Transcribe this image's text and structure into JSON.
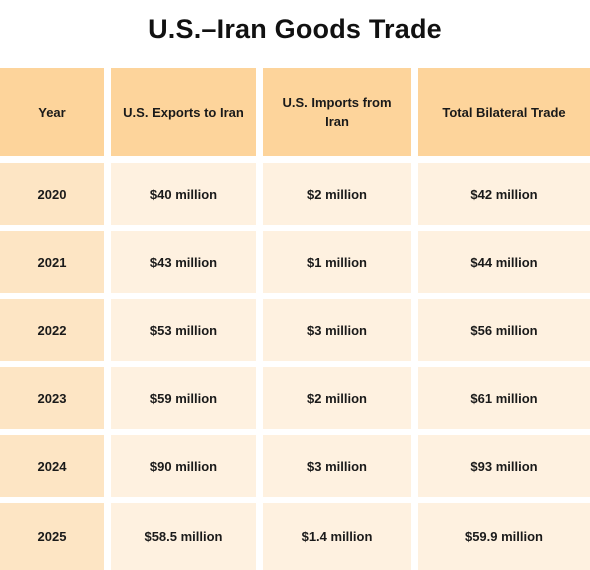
{
  "chart_data": {
    "type": "table",
    "title": "U.S.–Iran Goods Trade",
    "columns": [
      "Year",
      "U.S. Exports to Iran",
      "U.S. Imports from Iran",
      "Total Bilateral Trade"
    ],
    "rows": [
      [
        "2020",
        "$40 million",
        "$2 million",
        "$42 million"
      ],
      [
        "2021",
        "$43 million",
        "$1 million",
        "$44 million"
      ],
      [
        "2022",
        "$53 million",
        "$3 million",
        "$56 million"
      ],
      [
        "2023",
        "$59 million",
        "$2 million",
        "$61 million"
      ],
      [
        "2024",
        "$90 million",
        "$3 million",
        "$93 million"
      ],
      [
        "2025",
        "$58.5 million",
        "$1.4 million",
        "$59.9 million"
      ]
    ]
  },
  "colors": {
    "header": "#fdd49b",
    "year_cell": "#fde5c4",
    "data_cell": "#fef1e0"
  }
}
